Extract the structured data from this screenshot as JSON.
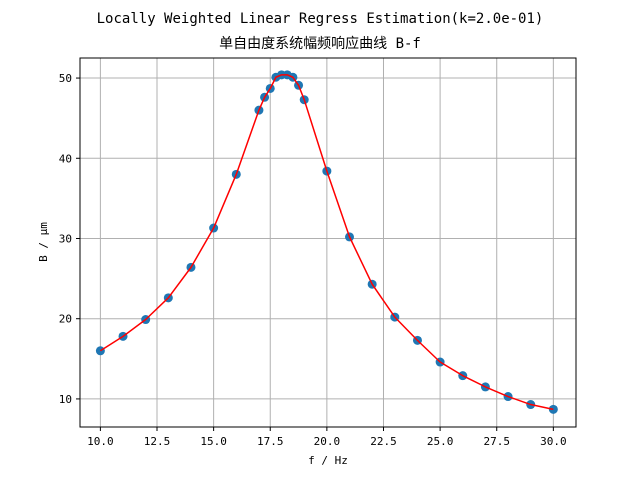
{
  "chart_data": {
    "type": "scatter",
    "title_lines": [
      "Locally Weighted Linear Regress Estimation(k=2.0e-01)",
      "单自由度系统幅频响应曲线 B-f"
    ],
    "xlabel": "f / Hz",
    "ylabel": "B / μm",
    "xlim": [
      9.1,
      31.0
    ],
    "ylim": [
      6.5,
      52.5
    ],
    "xticks": [
      10.0,
      12.5,
      15.0,
      17.5,
      20.0,
      22.5,
      25.0,
      27.5,
      30.0
    ],
    "xtick_labels": [
      "10.0",
      "12.5",
      "15.0",
      "17.5",
      "20.0",
      "22.5",
      "25.0",
      "27.5",
      "30.0"
    ],
    "yticks": [
      10,
      20,
      30,
      40,
      50
    ],
    "ytick_labels": [
      "10",
      "20",
      "30",
      "40",
      "50"
    ],
    "grid": true,
    "series": [
      {
        "kind": "scatter",
        "color": "#1f77b4",
        "x": [
          10,
          11,
          12,
          13,
          14,
          15,
          16,
          17,
          17.25,
          17.5,
          17.75,
          18,
          18.25,
          18.5,
          18.75,
          19,
          20,
          21,
          22,
          23,
          24,
          25,
          26,
          27,
          28,
          29,
          30
        ],
        "y": [
          16.0,
          17.8,
          19.9,
          22.6,
          26.4,
          31.3,
          38.0,
          46.0,
          47.6,
          48.7,
          50.1,
          50.4,
          50.4,
          50.1,
          49.1,
          47.3,
          38.4,
          30.2,
          24.3,
          20.2,
          17.3,
          14.6,
          12.9,
          11.5,
          10.3,
          9.3,
          8.7
        ]
      },
      {
        "kind": "line",
        "color": "#ff0000",
        "x": [
          10,
          11,
          12,
          13,
          14,
          15,
          16,
          17,
          17.25,
          17.5,
          17.75,
          18,
          18.25,
          18.5,
          18.75,
          19,
          20,
          21,
          22,
          23,
          24,
          25,
          26,
          27,
          28,
          29,
          30
        ],
        "y": [
          16.0,
          17.8,
          19.9,
          22.6,
          26.4,
          31.3,
          38.0,
          46.0,
          47.6,
          48.7,
          50.1,
          50.4,
          50.4,
          50.1,
          49.1,
          47.3,
          38.4,
          30.2,
          24.3,
          20.2,
          17.3,
          14.6,
          12.9,
          11.5,
          10.3,
          9.3,
          8.7
        ]
      }
    ]
  }
}
